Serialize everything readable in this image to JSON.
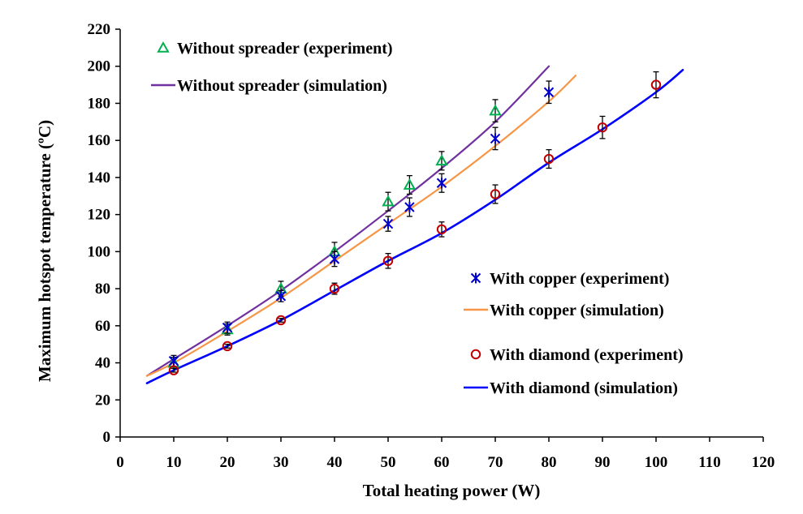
{
  "chart_data": {
    "type": "line",
    "xlabel": "Total heating power  (W)",
    "ylabel": "Maximum hotspot temperature  (ºC)",
    "xlim": [
      0,
      120
    ],
    "ylim": [
      0,
      220
    ],
    "xticks": [
      0,
      10,
      20,
      30,
      40,
      50,
      60,
      70,
      80,
      90,
      100,
      110,
      120
    ],
    "yticks": [
      0,
      20,
      40,
      60,
      80,
      100,
      120,
      140,
      160,
      180,
      200,
      220
    ],
    "grid": false,
    "legend_placement": "top-left and center-right",
    "series": [
      {
        "name": "Without spreader (experiment)",
        "kind": "markers",
        "marker": "triangle",
        "color": "#00b050",
        "x": [
          10,
          20,
          30,
          40,
          50,
          54,
          60,
          70
        ],
        "y": [
          40,
          58,
          80,
          100,
          127,
          136,
          149,
          176
        ],
        "err": [
          3,
          3,
          4,
          5,
          5,
          5,
          5,
          6
        ]
      },
      {
        "name": "Without spreader (simulation)",
        "kind": "line",
        "color": "#7030a0",
        "x": [
          5,
          10,
          20,
          30,
          40,
          50,
          60,
          70,
          80
        ],
        "y": [
          33,
          42,
          60,
          79,
          100,
          122,
          145,
          170,
          200
        ]
      },
      {
        "name": "With copper (experiment)",
        "kind": "markers",
        "marker": "star",
        "color": "#0000cc",
        "x": [
          10,
          20,
          30,
          40,
          50,
          54,
          60,
          70,
          80
        ],
        "y": [
          41,
          59,
          76,
          96,
          115,
          124,
          137,
          161,
          186
        ],
        "err": [
          3,
          3,
          3,
          4,
          4,
          5,
          5,
          6,
          6
        ]
      },
      {
        "name": "With copper (simulation)",
        "kind": "line",
        "color": "#f79646",
        "x": [
          5,
          10,
          20,
          30,
          40,
          50,
          60,
          70,
          80,
          85
        ],
        "y": [
          33,
          40,
          57,
          75,
          95,
          115,
          135,
          157,
          181,
          195
        ]
      },
      {
        "name": "With diamond (experiment)",
        "kind": "markers",
        "marker": "circle",
        "color": "#c00000",
        "x": [
          10,
          20,
          30,
          40,
          50,
          60,
          70,
          80,
          90,
          100
        ],
        "y": [
          36,
          49,
          63,
          80,
          95,
          112,
          131,
          150,
          167,
          190
        ],
        "err": [
          1,
          1,
          1,
          3,
          4,
          4,
          5,
          5,
          6,
          7
        ]
      },
      {
        "name": "With diamond (simulation)",
        "kind": "line",
        "color": "#0000ff",
        "x": [
          5,
          10,
          20,
          30,
          40,
          50,
          60,
          70,
          80,
          90,
          100,
          105
        ],
        "y": [
          29,
          36,
          49,
          63,
          79,
          95,
          110,
          128,
          148,
          166,
          186,
          198
        ]
      }
    ]
  }
}
